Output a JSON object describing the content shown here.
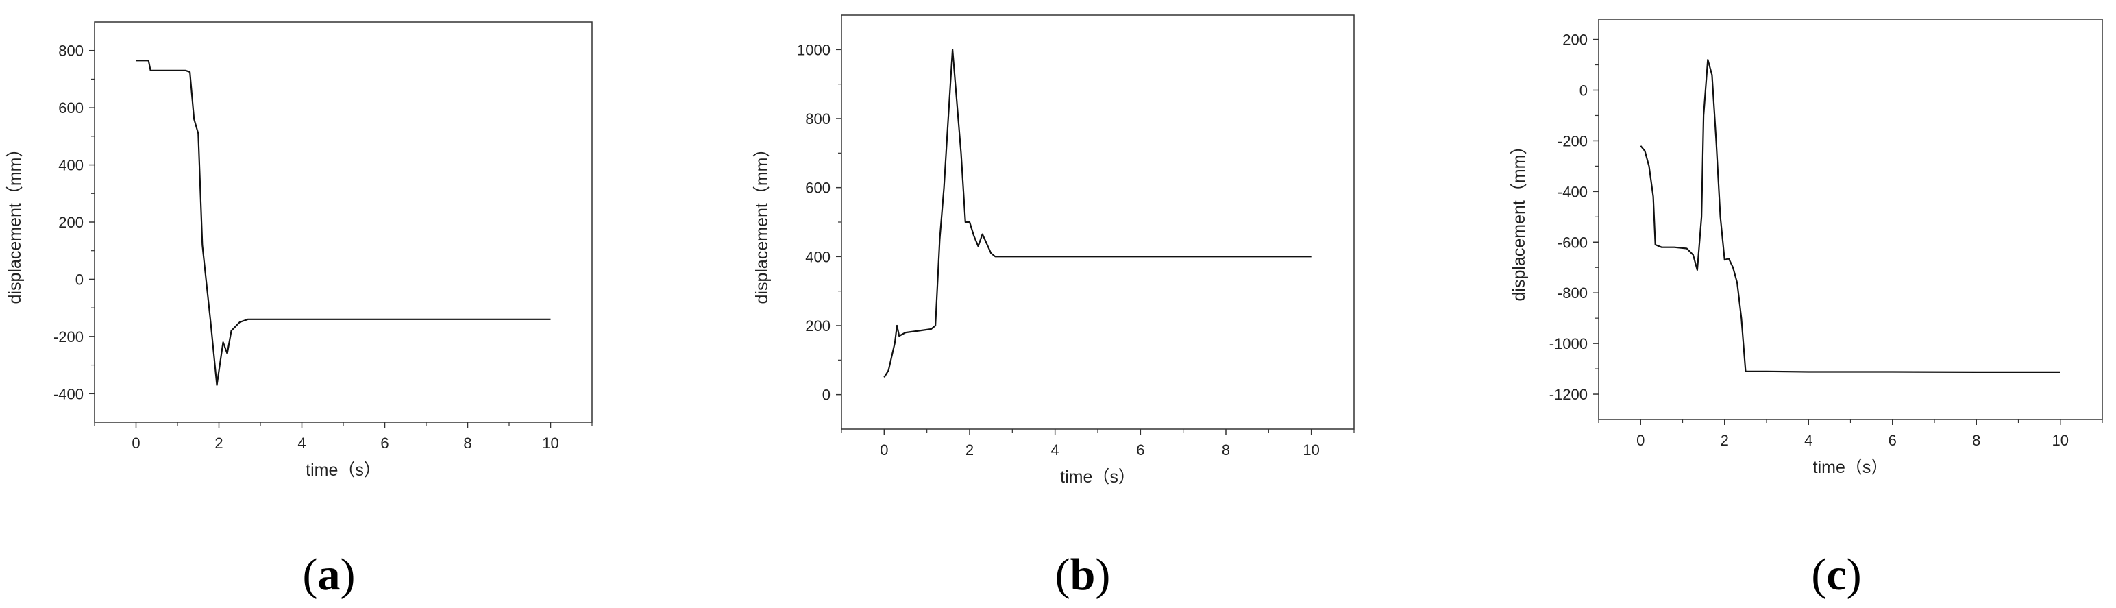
{
  "chart_data": [
    {
      "type": "line",
      "panel_label": "(a)",
      "xlabel": "time（s）",
      "ylabel": "displacement（mm）",
      "xlim": [
        -1,
        11
      ],
      "ylim": [
        -500,
        900
      ],
      "xticks": [
        0,
        2,
        4,
        6,
        8,
        10
      ],
      "yticks": [
        -400,
        -200,
        0,
        200,
        400,
        600,
        800
      ],
      "grid": false,
      "series": [
        {
          "values": [
            [
              0.0,
              765
            ],
            [
              0.3,
              765
            ],
            [
              0.35,
              730
            ],
            [
              0.6,
              730
            ],
            [
              1.2,
              730
            ],
            [
              1.3,
              725
            ],
            [
              1.4,
              560
            ],
            [
              1.5,
              510
            ],
            [
              1.6,
              120
            ],
            [
              1.8,
              -150
            ],
            [
              1.95,
              -370
            ],
            [
              2.1,
              -220
            ],
            [
              2.2,
              -260
            ],
            [
              2.3,
              -180
            ],
            [
              2.5,
              -150
            ],
            [
              2.7,
              -140
            ],
            [
              4.0,
              -140
            ],
            [
              6.0,
              -140
            ],
            [
              8.0,
              -140
            ],
            [
              10.0,
              -140
            ]
          ]
        }
      ]
    },
    {
      "type": "line",
      "panel_label": "(b)",
      "xlabel": "time（s）",
      "ylabel": "displacement（mm）",
      "xlim": [
        -1,
        11
      ],
      "ylim": [
        -100,
        1100
      ],
      "xticks": [
        0,
        2,
        4,
        6,
        8,
        10
      ],
      "yticks": [
        0,
        200,
        400,
        600,
        800,
        1000
      ],
      "grid": false,
      "series": [
        {
          "values": [
            [
              0.0,
              50
            ],
            [
              0.1,
              70
            ],
            [
              0.25,
              150
            ],
            [
              0.3,
              200
            ],
            [
              0.35,
              170
            ],
            [
              0.5,
              180
            ],
            [
              0.8,
              185
            ],
            [
              1.1,
              190
            ],
            [
              1.2,
              200
            ],
            [
              1.3,
              450
            ],
            [
              1.4,
              600
            ],
            [
              1.5,
              800
            ],
            [
              1.6,
              1000
            ],
            [
              1.7,
              850
            ],
            [
              1.8,
              700
            ],
            [
              1.9,
              500
            ],
            [
              2.0,
              500
            ],
            [
              2.1,
              460
            ],
            [
              2.2,
              430
            ],
            [
              2.3,
              465
            ],
            [
              2.5,
              410
            ],
            [
              2.6,
              400
            ],
            [
              4.0,
              400
            ],
            [
              6.0,
              400
            ],
            [
              8.0,
              400
            ],
            [
              10.0,
              400
            ]
          ]
        }
      ]
    },
    {
      "type": "line",
      "panel_label": "(c)",
      "xlabel": "time（s）",
      "ylabel": "displacement（mm）",
      "xlim": [
        -1,
        11
      ],
      "ylim": [
        -1300,
        280
      ],
      "xticks": [
        0,
        2,
        4,
        6,
        8,
        10
      ],
      "yticks": [
        -1200,
        -1000,
        -800,
        -600,
        -400,
        -200,
        0,
        200
      ],
      "grid": false,
      "series": [
        {
          "values": [
            [
              0.0,
              -220
            ],
            [
              0.1,
              -240
            ],
            [
              0.2,
              -300
            ],
            [
              0.3,
              -420
            ],
            [
              0.35,
              -610
            ],
            [
              0.5,
              -620
            ],
            [
              0.8,
              -620
            ],
            [
              1.1,
              -625
            ],
            [
              1.25,
              -650
            ],
            [
              1.35,
              -710
            ],
            [
              1.45,
              -500
            ],
            [
              1.5,
              -100
            ],
            [
              1.6,
              120
            ],
            [
              1.7,
              60
            ],
            [
              1.8,
              -200
            ],
            [
              1.9,
              -500
            ],
            [
              2.0,
              -670
            ],
            [
              2.1,
              -665
            ],
            [
              2.2,
              -700
            ],
            [
              2.3,
              -760
            ],
            [
              2.4,
              -900
            ],
            [
              2.5,
              -1110
            ],
            [
              3.0,
              -1110
            ],
            [
              4.0,
              -1112
            ],
            [
              6.0,
              -1112
            ],
            [
              8.0,
              -1113
            ],
            [
              10.0,
              -1113
            ]
          ]
        }
      ]
    }
  ]
}
